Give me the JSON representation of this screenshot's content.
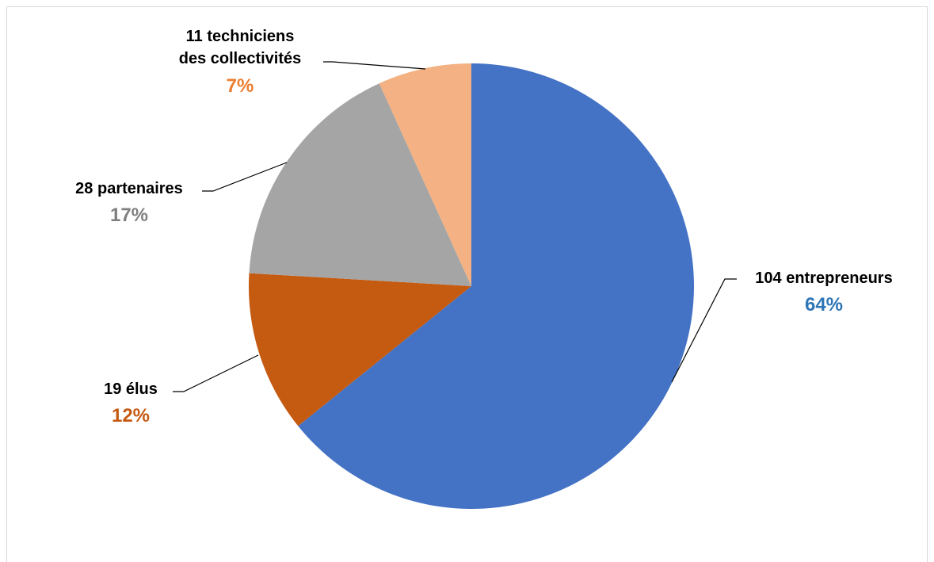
{
  "chart_data": {
    "type": "pie",
    "title": "",
    "start_angle_deg": 0,
    "direction": "clockwise",
    "slices": [
      {
        "label_lines": [
          "104 entrepreneurs"
        ],
        "value": 104,
        "percent_label": "64%",
        "color": "#4472C4",
        "pct_color": "#2E75B6"
      },
      {
        "label_lines": [
          "19 élus"
        ],
        "value": 19,
        "percent_label": "12%",
        "color": "#C55A11",
        "pct_color": "#C55A11"
      },
      {
        "label_lines": [
          "28 partenaires"
        ],
        "value": 28,
        "percent_label": "17%",
        "color": "#A5A5A5",
        "pct_color": "#7F7F7F"
      },
      {
        "label_lines": [
          "11 techniciens",
          "des collectivités"
        ],
        "value": 11,
        "percent_label": "7%",
        "color": "#F4B183",
        "pct_color": "#ED7D31"
      }
    ]
  }
}
